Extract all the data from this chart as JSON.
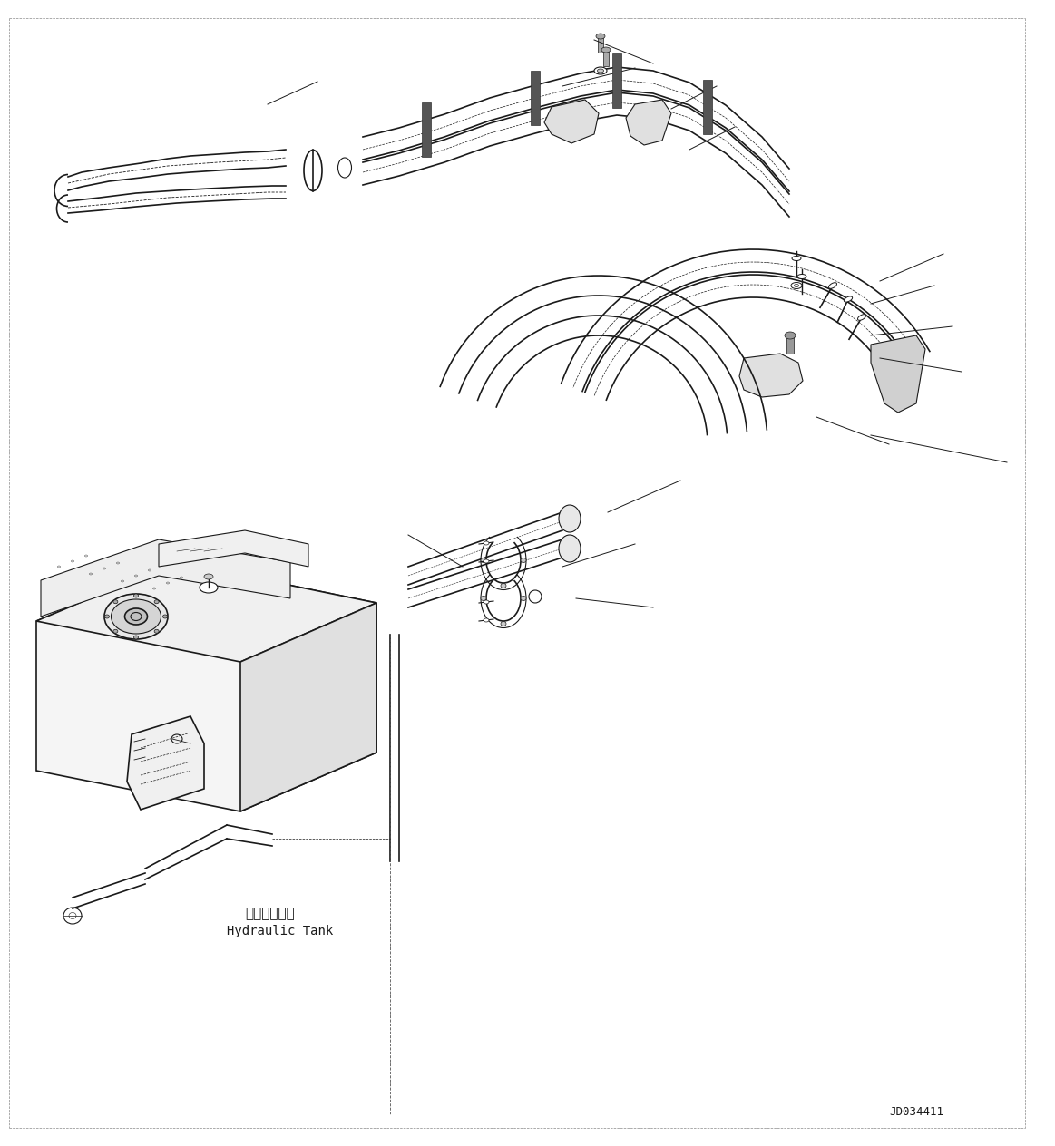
{
  "background_color": "#ffffff",
  "line_color": "#000000",
  "drawing_color": "#1a1a1a",
  "fig_width": 11.63,
  "fig_height": 12.64,
  "dpi": 100,
  "part_number": "JD034411",
  "hydraulic_tank_jp": "作動油タンク",
  "hydraulic_tank_en": "Hydraulic Tank",
  "border_color": "#000000"
}
